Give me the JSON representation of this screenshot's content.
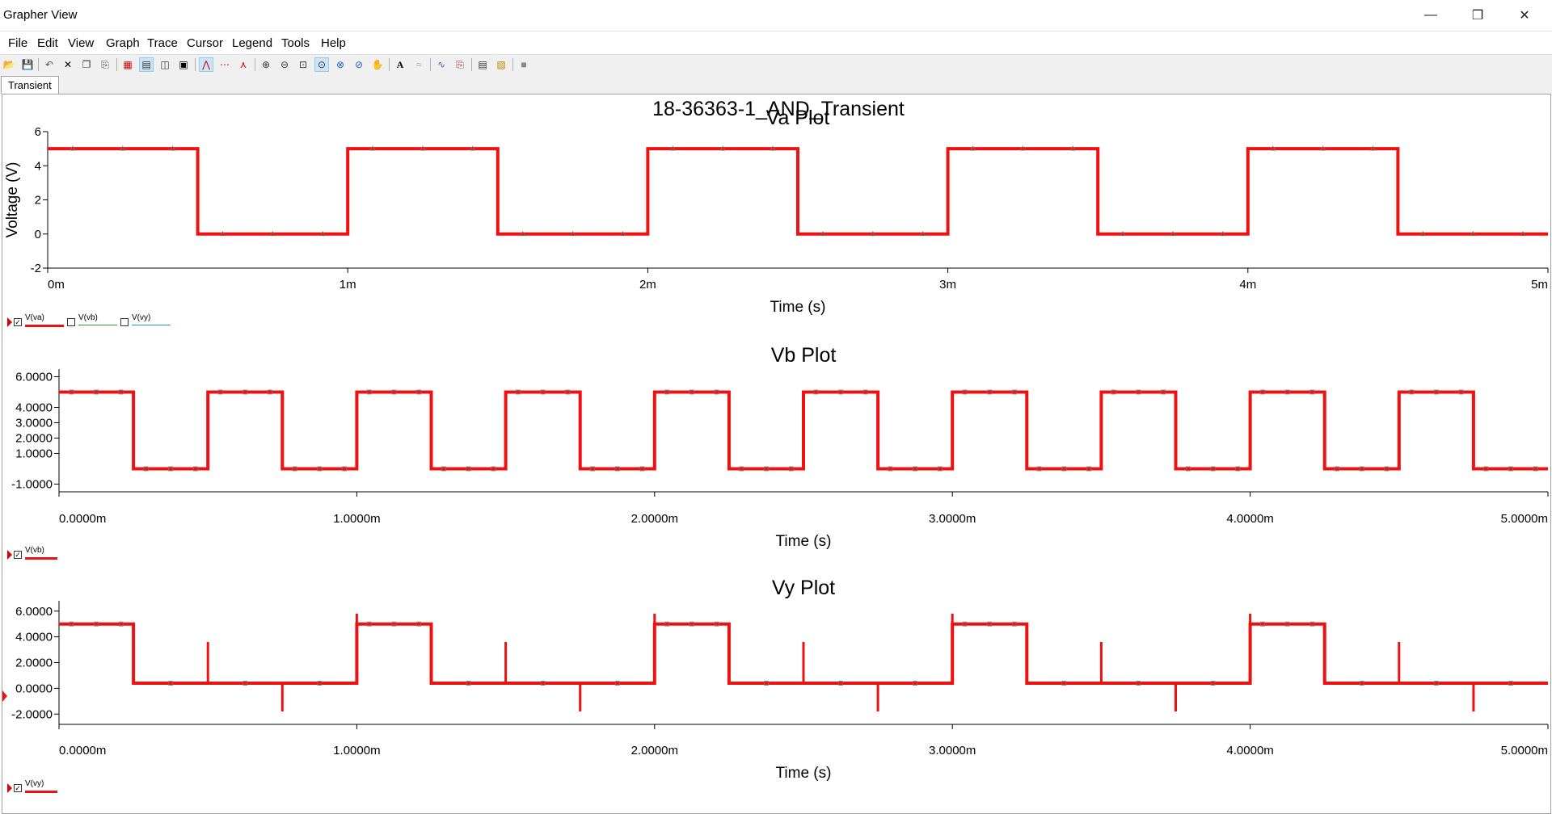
{
  "window": {
    "title": "Grapher View",
    "controls": {
      "minimize": "—",
      "restore": "❐",
      "close": "✕"
    }
  },
  "menu": [
    "File",
    "Edit",
    "View",
    "Graph",
    "Trace",
    "Cursor",
    "Legend",
    "Tools",
    "Help"
  ],
  "tabs": [
    {
      "label": "Transient"
    }
  ],
  "page_title": "18-36363-1_AND_Transient",
  "colors": {
    "trace": "#ee1111",
    "vb_legend": "#2ea02e",
    "vy_legend": "#1f9fd0",
    "axis": "#000000"
  },
  "chart_data": [
    {
      "type": "line",
      "title": "Va Plot",
      "xlabel": "Time (s)",
      "ylabel": "Voltage (V)",
      "xlim": [
        0,
        5
      ],
      "ylim": [
        -2,
        6
      ],
      "yticks": [
        6,
        4,
        2,
        0,
        -2
      ],
      "ytick_labels": [
        "6",
        "4",
        "2",
        "0",
        "-2"
      ],
      "xticks": [
        0,
        1,
        2,
        3,
        4,
        5
      ],
      "xtick_labels": [
        "0m",
        "1m",
        "2m",
        "3m",
        "4m",
        "5m"
      ],
      "legend": [
        {
          "label": "V(va)",
          "checked": true
        },
        {
          "label": "V(vb)",
          "checked": false
        },
        {
          "label": "V(vy)",
          "checked": false
        }
      ],
      "series": [
        {
          "name": "V(va)",
          "points": [
            [
              0,
              5
            ],
            [
              0.5,
              5
            ],
            [
              0.5,
              0
            ],
            [
              1,
              0
            ],
            [
              1,
              5
            ],
            [
              1.5,
              5
            ],
            [
              1.5,
              0
            ],
            [
              2,
              0
            ],
            [
              2,
              5
            ],
            [
              2.5,
              5
            ],
            [
              2.5,
              0
            ],
            [
              3,
              0
            ],
            [
              3,
              5
            ],
            [
              3.5,
              5
            ],
            [
              3.5,
              0
            ],
            [
              4,
              0
            ],
            [
              4,
              5
            ],
            [
              4.5,
              5
            ],
            [
              4.5,
              0
            ],
            [
              5,
              0
            ]
          ]
        }
      ]
    },
    {
      "type": "line",
      "title": "Vb Plot",
      "xlabel": "Time (s)",
      "ylabel": "",
      "xlim": [
        0,
        5
      ],
      "ylim": [
        -1.5,
        6.5
      ],
      "yticks": [
        6,
        4,
        3,
        2,
        1,
        -1
      ],
      "ytick_labels": [
        "6.0000",
        "4.0000",
        "3.0000",
        "2.0000",
        "1.0000",
        "-1.0000"
      ],
      "xticks": [
        0,
        1,
        2,
        3,
        4,
        5
      ],
      "xtick_labels": [
        "0.0000m",
        "1.0000m",
        "2.0000m",
        "3.0000m",
        "4.0000m",
        "5.0000m"
      ],
      "legend": [
        {
          "label": "V(vb)",
          "checked": true
        }
      ],
      "series": [
        {
          "name": "V(vb)",
          "points": [
            [
              0,
              5
            ],
            [
              0.25,
              5
            ],
            [
              0.25,
              0
            ],
            [
              0.5,
              0
            ],
            [
              0.5,
              5
            ],
            [
              0.75,
              5
            ],
            [
              0.75,
              0
            ],
            [
              1,
              0
            ],
            [
              1,
              5
            ],
            [
              1.25,
              5
            ],
            [
              1.25,
              0
            ],
            [
              1.5,
              0
            ],
            [
              1.5,
              5
            ],
            [
              1.75,
              5
            ],
            [
              1.75,
              0
            ],
            [
              2,
              0
            ],
            [
              2,
              5
            ],
            [
              2.25,
              5
            ],
            [
              2.25,
              0
            ],
            [
              2.5,
              0
            ],
            [
              2.5,
              5
            ],
            [
              2.75,
              5
            ],
            [
              2.75,
              0
            ],
            [
              3,
              0
            ],
            [
              3,
              5
            ],
            [
              3.25,
              5
            ],
            [
              3.25,
              0
            ],
            [
              3.5,
              0
            ],
            [
              3.5,
              5
            ],
            [
              3.75,
              5
            ],
            [
              3.75,
              0
            ],
            [
              4,
              0
            ],
            [
              4,
              5
            ],
            [
              4.25,
              5
            ],
            [
              4.25,
              0
            ],
            [
              4.5,
              0
            ],
            [
              4.5,
              5
            ],
            [
              4.75,
              5
            ],
            [
              4.75,
              0
            ],
            [
              5,
              0
            ]
          ]
        }
      ]
    },
    {
      "type": "line",
      "title": "Vy Plot",
      "xlabel": "Time (s)",
      "ylabel": "",
      "xlim": [
        0,
        5
      ],
      "ylim": [
        -2.8,
        6.8
      ],
      "yticks": [
        6,
        4,
        2,
        0,
        -2
      ],
      "ytick_labels": [
        "6.0000",
        "4.0000",
        "2.0000",
        "0.0000",
        "-2.0000"
      ],
      "xticks": [
        0,
        1,
        2,
        3,
        4,
        5
      ],
      "xtick_labels": [
        "0.0000m",
        "1.0000m",
        "2.0000m",
        "3.0000m",
        "4.0000m",
        "5.0000m"
      ],
      "legend": [
        {
          "label": "V(vy)",
          "checked": true
        }
      ],
      "series": [
        {
          "name": "V(vy)",
          "points": [
            [
              0,
              5
            ],
            [
              0.25,
              5
            ],
            [
              0.25,
              0.4
            ],
            [
              1,
              0.4
            ],
            [
              1,
              5
            ],
            [
              1.25,
              5
            ],
            [
              1.25,
              0.4
            ],
            [
              2,
              0.4
            ],
            [
              2,
              5
            ],
            [
              2.25,
              5
            ],
            [
              2.25,
              0.4
            ],
            [
              3,
              0.4
            ],
            [
              3,
              5
            ],
            [
              3.25,
              5
            ],
            [
              3.25,
              0.4
            ],
            [
              4,
              0.4
            ],
            [
              4,
              5
            ],
            [
              4.25,
              5
            ],
            [
              4.25,
              0.4
            ],
            [
              5,
              0.4
            ]
          ]
        }
      ],
      "spikes": [
        {
          "x": 0.5,
          "from": 0.4,
          "to": 3.6
        },
        {
          "x": 0.75,
          "from": 0.4,
          "to": -1.8
        },
        {
          "x": 1.0,
          "from": 5,
          "to": 5.8
        },
        {
          "x": 1.5,
          "from": 0.4,
          "to": 3.6
        },
        {
          "x": 1.75,
          "from": 0.4,
          "to": -1.8
        },
        {
          "x": 2.0,
          "from": 5,
          "to": 5.8
        },
        {
          "x": 2.5,
          "from": 0.4,
          "to": 3.6
        },
        {
          "x": 2.75,
          "from": 0.4,
          "to": -1.8
        },
        {
          "x": 3.0,
          "from": 5,
          "to": 5.8
        },
        {
          "x": 3.5,
          "from": 0.4,
          "to": 3.6
        },
        {
          "x": 3.75,
          "from": 0.4,
          "to": -1.8
        },
        {
          "x": 4.0,
          "from": 5,
          "to": 5.8
        },
        {
          "x": 4.5,
          "from": 0.4,
          "to": 3.6
        },
        {
          "x": 4.75,
          "from": 0.4,
          "to": -1.8
        }
      ]
    }
  ]
}
